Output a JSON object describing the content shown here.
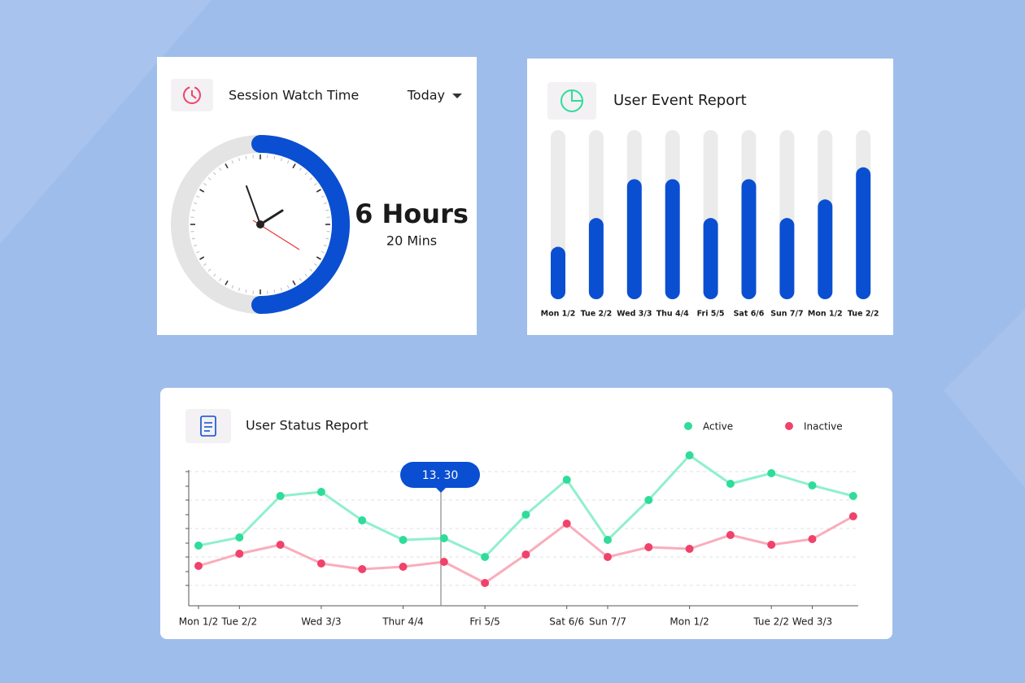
{
  "session": {
    "title": "Session Watch Time",
    "filter": "Today",
    "hours": "6 Hours",
    "minutes": "20 Mins"
  },
  "chart_data": [
    {
      "type": "bar",
      "title": "User Event Report",
      "categories": [
        "Mon 1/2",
        "Tue 2/2",
        "Wed 3/3",
        "Thu 4/4",
        "Fri 5/5",
        "Sat 6/6",
        "Sun 7/7",
        "Mon 1/2",
        "Tue 2/2"
      ],
      "values": [
        31,
        48,
        71,
        71,
        48,
        71,
        48,
        59,
        78
      ],
      "color": "#0a4fd1",
      "track_color": "#ebebeb",
      "ylim": [
        0,
        100
      ]
    },
    {
      "type": "line",
      "title": "User Status Report",
      "annotation": "13. 30",
      "categories": [
        "Mon 1/2",
        "Tue 2/2",
        null,
        "Wed 3/3",
        null,
        "Thur 4/4",
        null,
        "Fri 5/5",
        null,
        "Sat 6/6",
        "Sun 7/7",
        null,
        "Mon 1/2",
        null,
        "Tue 2/2",
        "Wed 3/3",
        null
      ],
      "series": [
        {
          "name": "Active",
          "color": "#2fdc9a",
          "values": [
            37,
            42,
            67.5,
            70,
            52.5,
            40.5,
            41.5,
            30,
            56,
            77.5,
            40.5,
            65,
            92.5,
            75,
            81.5,
            74,
            67.5
          ]
        },
        {
          "name": "Inactive",
          "color": "#f0426a",
          "values": [
            24.5,
            32,
            37.5,
            26,
            22.5,
            24,
            27,
            14,
            31.5,
            50.5,
            30,
            36,
            35,
            43.5,
            37.5,
            41,
            55
          ]
        }
      ],
      "ylim": [
        0,
        100
      ]
    }
  ]
}
